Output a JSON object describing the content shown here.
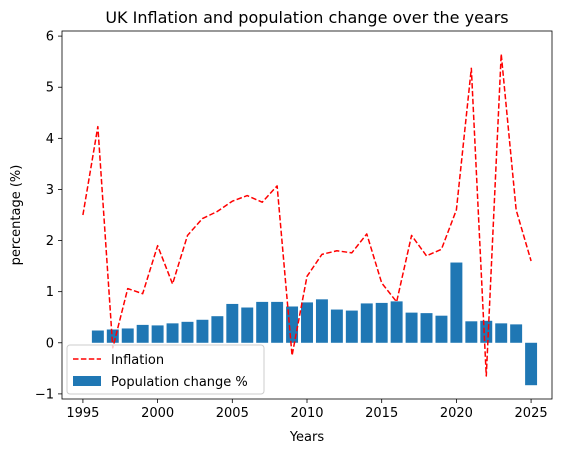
{
  "chart_data": {
    "type": "bar+line",
    "title": "UK Inflation and population change over the years",
    "xlabel": "Years",
    "ylabel": "percentage (%)",
    "xlim": [
      1993.6,
      2026.4
    ],
    "ylim": [
      -1.1,
      6.1
    ],
    "xticks": [
      1995,
      2000,
      2005,
      2010,
      2015,
      2020,
      2025
    ],
    "yticks": [
      -1,
      0,
      1,
      2,
      3,
      4,
      5,
      6
    ],
    "grid": false,
    "legend_position": "lower-left",
    "series": [
      {
        "name": "Inflation",
        "kind": "line",
        "style": "dashed",
        "color": "#ff0000",
        "x": [
          1995,
          1996,
          1997,
          1998,
          1999,
          2000,
          2001,
          2002,
          2003,
          2004,
          2005,
          2006,
          2007,
          2008,
          2009,
          2010,
          2011,
          2012,
          2013,
          2014,
          2015,
          2016,
          2017,
          2018,
          2019,
          2020,
          2021,
          2022,
          2023,
          2024,
          2025
        ],
        "values": [
          2.5,
          4.23,
          -0.1,
          1.06,
          0.96,
          1.9,
          1.15,
          2.1,
          2.43,
          2.57,
          2.77,
          2.88,
          2.75,
          3.07,
          -0.25,
          1.3,
          1.73,
          1.8,
          1.76,
          2.13,
          1.17,
          0.8,
          2.1,
          1.7,
          1.83,
          2.6,
          5.37,
          -0.65,
          5.65,
          2.6,
          1.6
        ]
      },
      {
        "name": "Population change %",
        "kind": "bar",
        "color": "#1f77b4",
        "x": [
          1996,
          1997,
          1998,
          1999,
          2000,
          2001,
          2002,
          2003,
          2004,
          2005,
          2006,
          2007,
          2008,
          2009,
          2010,
          2011,
          2012,
          2013,
          2014,
          2015,
          2016,
          2017,
          2018,
          2019,
          2020,
          2021,
          2022,
          2023,
          2024,
          2025
        ],
        "values": [
          0.24,
          0.26,
          0.28,
          0.35,
          0.34,
          0.38,
          0.41,
          0.45,
          0.52,
          0.76,
          0.69,
          0.8,
          0.8,
          0.71,
          0.79,
          0.85,
          0.65,
          0.63,
          0.77,
          0.78,
          0.81,
          0.59,
          0.58,
          0.53,
          1.57,
          0.42,
          0.43,
          0.38,
          0.36,
          -0.83
        ]
      }
    ]
  }
}
